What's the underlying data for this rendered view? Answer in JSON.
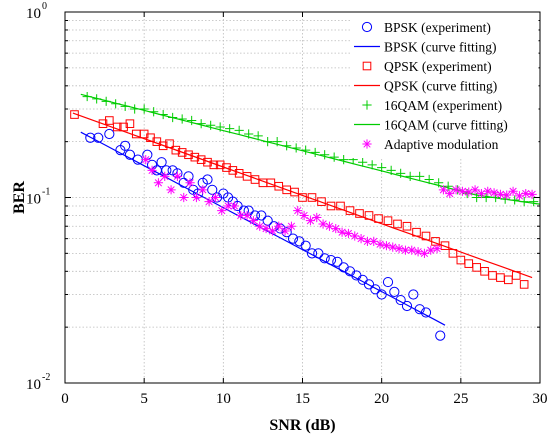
{
  "chart_data": {
    "type": "scatter",
    "title": "",
    "xlabel": "SNR (dB)",
    "ylabel": "BER",
    "xlim": [
      0,
      30
    ],
    "ylim": [
      0.01,
      1
    ],
    "yscale": "log",
    "grid": true,
    "legend_position": "top-right",
    "x_ticks": [
      0,
      5,
      10,
      15,
      20,
      25,
      30
    ],
    "x_tick_labels": [
      "0",
      "5",
      "10",
      "15",
      "20",
      "25",
      "30"
    ],
    "y_ticks": [
      0.01,
      0.1,
      1
    ],
    "y_tick_labels": [
      {
        "base": "10",
        "exp": "-2"
      },
      {
        "base": "10",
        "exp": "-1"
      },
      {
        "base": "10",
        "exp": "0"
      }
    ],
    "series": [
      {
        "name": "BPSK (experiment)",
        "kind": "scatter",
        "marker": "circle",
        "color": "#0000ff",
        "x": [
          1.6,
          2.1,
          2.8,
          3.5,
          3.8,
          4.1,
          4.6,
          5.2,
          5.5,
          5.8,
          6.1,
          6.4,
          6.8,
          7.1,
          7.5,
          7.8,
          8.1,
          8.4,
          8.7,
          9.0,
          9.3,
          9.6,
          10.0,
          10.3,
          10.6,
          10.9,
          11.3,
          11.6,
          12.0,
          12.4,
          12.8,
          13.2,
          13.6,
          14.0,
          14.4,
          14.8,
          15.2,
          15.6,
          16.0,
          16.4,
          16.8,
          17.2,
          17.6,
          18.0,
          18.4,
          18.8,
          19.2,
          19.6,
          20.0,
          20.4,
          20.8,
          21.2,
          21.6,
          22.0,
          22.4,
          22.8,
          23.7
        ],
        "y": [
          0.21,
          0.21,
          0.22,
          0.18,
          0.19,
          0.17,
          0.16,
          0.17,
          0.15,
          0.14,
          0.155,
          0.14,
          0.14,
          0.135,
          0.12,
          0.13,
          0.11,
          0.105,
          0.12,
          0.125,
          0.11,
          0.1,
          0.105,
          0.1,
          0.095,
          0.09,
          0.085,
          0.085,
          0.08,
          0.08,
          0.075,
          0.07,
          0.068,
          0.065,
          0.06,
          0.058,
          0.055,
          0.05,
          0.05,
          0.047,
          0.046,
          0.045,
          0.042,
          0.04,
          0.038,
          0.036,
          0.034,
          0.032,
          0.03,
          0.035,
          0.031,
          0.028,
          0.026,
          0.03,
          0.025,
          0.024,
          0.018
        ]
      },
      {
        "name": "BPSK (curve fitting)",
        "kind": "line",
        "color": "#0000ff",
        "x": [
          1.0,
          24.0
        ],
        "y": [
          0.225,
          0.0205
        ]
      },
      {
        "name": "QPSK (experiment)",
        "kind": "scatter",
        "marker": "square",
        "color": "#ff0000",
        "x": [
          0.6,
          2.4,
          2.8,
          3.3,
          3.7,
          4.1,
          4.5,
          5.0,
          5.4,
          5.8,
          6.2,
          6.6,
          7.0,
          7.4,
          7.8,
          8.2,
          8.6,
          9.0,
          9.4,
          9.8,
          10.2,
          10.6,
          11.0,
          11.5,
          12.0,
          12.5,
          13.0,
          13.5,
          14.0,
          14.5,
          15.0,
          15.6,
          16.2,
          16.8,
          17.4,
          18.0,
          18.6,
          19.2,
          19.8,
          20.4,
          21.0,
          21.6,
          22.2,
          22.8,
          23.4,
          24.0,
          24.5,
          25.0,
          25.5,
          26.0,
          26.5,
          27.0,
          27.5,
          28.0,
          28.5,
          29.0
        ],
        "y": [
          0.28,
          0.25,
          0.26,
          0.24,
          0.24,
          0.25,
          0.22,
          0.22,
          0.21,
          0.2,
          0.19,
          0.195,
          0.18,
          0.175,
          0.17,
          0.165,
          0.16,
          0.155,
          0.15,
          0.15,
          0.145,
          0.14,
          0.135,
          0.13,
          0.125,
          0.12,
          0.12,
          0.115,
          0.11,
          0.107,
          0.1,
          0.1,
          0.095,
          0.09,
          0.09,
          0.085,
          0.082,
          0.08,
          0.077,
          0.075,
          0.072,
          0.07,
          0.065,
          0.062,
          0.058,
          0.055,
          0.05,
          0.046,
          0.044,
          0.042,
          0.04,
          0.038,
          0.037,
          0.036,
          0.038,
          0.034
        ]
      },
      {
        "name": "QPSK (curve fitting)",
        "kind": "line",
        "color": "#ff0000",
        "x": [
          0.5,
          29.5
        ],
        "y": [
          0.285,
          0.037
        ]
      },
      {
        "name": "16QAM (experiment)",
        "kind": "scatter",
        "marker": "plus",
        "color": "#00cc00",
        "x": [
          1.4,
          2.0,
          2.6,
          3.2,
          3.8,
          4.4,
          5.0,
          5.6,
          6.2,
          6.8,
          7.4,
          8.0,
          8.6,
          9.2,
          9.8,
          10.4,
          11.0,
          11.6,
          12.2,
          12.8,
          13.4,
          14.0,
          14.6,
          15.2,
          15.8,
          16.4,
          17.0,
          17.6,
          18.2,
          18.8,
          19.4,
          20.0,
          20.6,
          21.2,
          21.8,
          22.4,
          23.0,
          23.6,
          24.2,
          24.8,
          25.4,
          26.0,
          26.6,
          27.2,
          27.8,
          28.4,
          29.0,
          29.6
        ],
        "y": [
          0.35,
          0.34,
          0.33,
          0.32,
          0.31,
          0.3,
          0.3,
          0.29,
          0.28,
          0.27,
          0.265,
          0.26,
          0.25,
          0.245,
          0.24,
          0.235,
          0.23,
          0.22,
          0.215,
          0.2,
          0.2,
          0.19,
          0.185,
          0.18,
          0.175,
          0.17,
          0.165,
          0.16,
          0.16,
          0.155,
          0.15,
          0.145,
          0.14,
          0.135,
          0.13,
          0.13,
          0.125,
          0.12,
          0.115,
          0.11,
          0.105,
          0.1,
          0.1,
          0.1,
          0.098,
          0.097,
          0.095,
          0.095
        ]
      },
      {
        "name": "16QAM (curve fitting)",
        "kind": "line",
        "color": "#00cc00",
        "x": [
          1.0,
          26.0,
          30.0
        ],
        "y": [
          0.36,
          0.103,
          0.092
        ]
      },
      {
        "name": "Adaptive modulation",
        "kind": "scatter",
        "marker": "asterisk",
        "color": "#ff00ff",
        "x": [
          5.1,
          5.5,
          5.9,
          6.3,
          6.7,
          7.1,
          7.5,
          7.9,
          8.3,
          8.7,
          9.1,
          9.5,
          9.9,
          10.3,
          10.7,
          11.1,
          11.5,
          11.9,
          12.3,
          12.7,
          13.1,
          13.5,
          13.9,
          14.3,
          14.7,
          15.1,
          15.5,
          15.9,
          16.3,
          16.7,
          17.1,
          17.5,
          17.9,
          18.3,
          18.7,
          19.1,
          19.5,
          19.9,
          20.3,
          20.7,
          21.1,
          21.5,
          21.9,
          22.3,
          22.7,
          23.1,
          23.5,
          23.9,
          24.3,
          24.7,
          25.1,
          25.5,
          25.9,
          26.3,
          26.7,
          27.1,
          27.5,
          27.9,
          28.3,
          28.7,
          29.1,
          29.5
        ],
        "y": [
          0.16,
          0.14,
          0.12,
          0.13,
          0.11,
          0.13,
          0.1,
          0.12,
          0.1,
          0.11,
          0.095,
          0.1,
          0.085,
          0.09,
          0.09,
          0.08,
          0.08,
          0.075,
          0.07,
          0.068,
          0.066,
          0.07,
          0.066,
          0.07,
          0.085,
          0.08,
          0.075,
          0.078,
          0.072,
          0.07,
          0.068,
          0.065,
          0.064,
          0.062,
          0.06,
          0.058,
          0.058,
          0.056,
          0.055,
          0.054,
          0.053,
          0.052,
          0.052,
          0.051,
          0.05,
          0.052,
          0.053,
          0.11,
          0.105,
          0.11,
          0.108,
          0.107,
          0.11,
          0.105,
          0.108,
          0.106,
          0.104,
          0.103,
          0.108,
          0.102,
          0.105,
          0.104
        ]
      }
    ]
  },
  "colors": {
    "bpsk": "#0000ff",
    "qpsk": "#ff0000",
    "qam16": "#00cc00",
    "adaptive": "#ff00ff"
  }
}
